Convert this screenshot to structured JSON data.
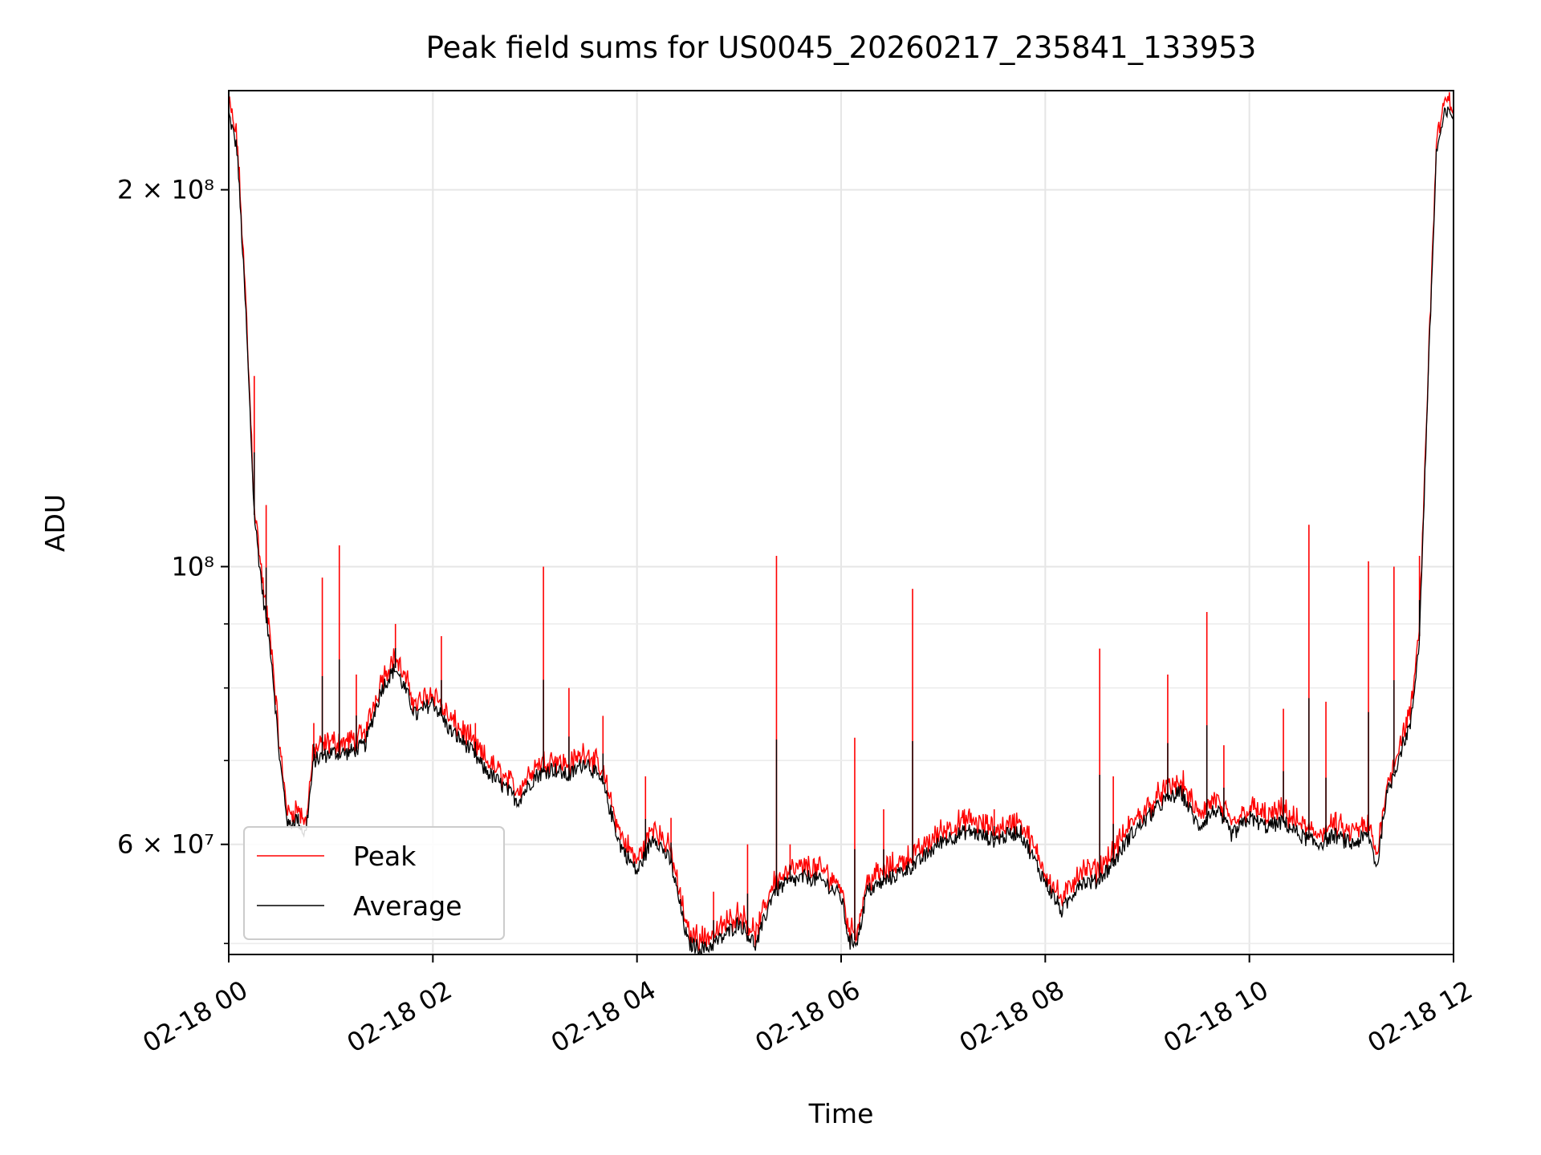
{
  "chart_data": {
    "type": "line",
    "title": "Peak field sums for US0045_20260217_235841_133953",
    "xlabel": "Time",
    "ylabel": "ADU",
    "yscale": "log",
    "ylim": [
      49000000,
      240000000
    ],
    "xlim": [
      "02-18 00:00",
      "02-18 12:00"
    ],
    "x_ticks": [
      "02-18 00",
      "02-18 02",
      "02-18 04",
      "02-18 06",
      "02-18 08",
      "02-18 10",
      "02-18 12"
    ],
    "y_tick_labels": [
      "6 × 10⁷",
      "10⁸",
      "2 × 10⁸"
    ],
    "grid": true,
    "legend": {
      "placement": "lower-left",
      "entries": [
        "Peak",
        "Average"
      ]
    },
    "colors": {
      "Peak": "#ff0000",
      "Average": "#000000"
    },
    "series": [
      {
        "name": "Average",
        "color": "#000000",
        "points": [
          [
            "02-18 00:00",
            230000000
          ],
          [
            "02-18 00:05",
            215000000
          ],
          [
            "02-18 00:10",
            160000000
          ],
          [
            "02-18 00:15",
            110000000
          ],
          [
            "02-18 00:20",
            95000000
          ],
          [
            "02-18 00:25",
            85000000
          ],
          [
            "02-18 00:30",
            70000000
          ],
          [
            "02-18 00:35",
            62000000
          ],
          [
            "02-18 00:40",
            63000000
          ],
          [
            "02-18 00:45",
            61000000
          ],
          [
            "02-18 00:50",
            70000000
          ],
          [
            "02-18 01:00",
            71000000
          ],
          [
            "02-18 01:10",
            71000000
          ],
          [
            "02-18 01:20",
            72000000
          ],
          [
            "02-18 01:30",
            80000000
          ],
          [
            "02-18 01:38",
            83000000
          ],
          [
            "02-18 01:45",
            79000000
          ],
          [
            "02-18 01:50",
            76000000
          ],
          [
            "02-18 02:00",
            78000000
          ],
          [
            "02-18 02:10",
            74000000
          ],
          [
            "02-18 02:20",
            72000000
          ],
          [
            "02-18 02:30",
            69000000
          ],
          [
            "02-18 02:40",
            67000000
          ],
          [
            "02-18 02:50",
            65000000
          ],
          [
            "02-18 03:00",
            68000000
          ],
          [
            "02-18 03:10",
            69000000
          ],
          [
            "02-18 03:20",
            68000000
          ],
          [
            "02-18 03:30",
            70000000
          ],
          [
            "02-18 03:40",
            67000000
          ],
          [
            "02-18 03:50",
            60000000
          ],
          [
            "02-18 04:00",
            57000000
          ],
          [
            "02-18 04:10",
            61000000
          ],
          [
            "02-18 04:20",
            58000000
          ],
          [
            "02-18 04:30",
            50000000
          ],
          [
            "02-18 04:40",
            49500000
          ],
          [
            "02-18 04:50",
            50500000
          ],
          [
            "02-18 05:00",
            52000000
          ],
          [
            "02-18 05:10",
            49800000
          ],
          [
            "02-18 05:20",
            55000000
          ],
          [
            "02-18 05:30",
            56000000
          ],
          [
            "02-18 05:40",
            56500000
          ],
          [
            "02-18 05:50",
            56000000
          ],
          [
            "02-18 06:00",
            54500000
          ],
          [
            "02-18 06:05",
            50000000
          ],
          [
            "02-18 06:10",
            50500000
          ],
          [
            "02-18 06:15",
            55000000
          ],
          [
            "02-18 06:30",
            56500000
          ],
          [
            "02-18 06:45",
            58000000
          ],
          [
            "02-18 07:00",
            60500000
          ],
          [
            "02-18 07:15",
            61500000
          ],
          [
            "02-18 07:30",
            60500000
          ],
          [
            "02-18 07:45",
            61500000
          ],
          [
            "02-18 08:00",
            56000000
          ],
          [
            "02-18 08:10",
            53000000
          ],
          [
            "02-18 08:20",
            56000000
          ],
          [
            "02-18 08:30",
            56000000
          ],
          [
            "02-18 08:40",
            58000000
          ],
          [
            "02-18 08:50",
            61000000
          ],
          [
            "02-18 09:00",
            63000000
          ],
          [
            "02-18 09:10",
            65000000
          ],
          [
            "02-18 09:20",
            66000000
          ],
          [
            "02-18 09:30",
            62000000
          ],
          [
            "02-18 09:40",
            64000000
          ],
          [
            "02-18 09:50",
            61000000
          ],
          [
            "02-18 10:00",
            63000000
          ],
          [
            "02-18 10:10",
            62000000
          ],
          [
            "02-18 10:20",
            62500000
          ],
          [
            "02-18 10:30",
            61000000
          ],
          [
            "02-18 10:40",
            60000000
          ],
          [
            "02-18 10:50",
            61000000
          ],
          [
            "02-18 11:00",
            60000000
          ],
          [
            "02-18 11:10",
            61000000
          ],
          [
            "02-18 11:15",
            57500000
          ],
          [
            "02-18 11:20",
            65000000
          ],
          [
            "02-18 11:30",
            72000000
          ],
          [
            "02-18 11:35",
            75000000
          ],
          [
            "02-18 11:40",
            88000000
          ],
          [
            "02-18 11:45",
            140000000
          ],
          [
            "02-18 11:50",
            215000000
          ],
          [
            "02-18 11:55",
            230000000
          ]
        ]
      },
      {
        "name": "Peak",
        "color": "#ff0000",
        "spikes": [
          [
            "02-18 00:15",
            142000000
          ],
          [
            "02-18 00:22",
            112000000
          ],
          [
            "02-18 00:50",
            75000000
          ],
          [
            "02-18 00:55",
            98000000
          ],
          [
            "02-18 01:05",
            104000000
          ],
          [
            "02-18 01:15",
            82000000
          ],
          [
            "02-18 01:38",
            90000000
          ],
          [
            "02-18 02:05",
            88000000
          ],
          [
            "02-18 02:25",
            75000000
          ],
          [
            "02-18 03:05",
            100000000
          ],
          [
            "02-18 03:20",
            80000000
          ],
          [
            "02-18 03:40",
            76000000
          ],
          [
            "02-18 04:05",
            68000000
          ],
          [
            "02-18 04:20",
            63000000
          ],
          [
            "02-18 04:45",
            55000000
          ],
          [
            "02-18 05:05",
            60000000
          ],
          [
            "02-18 05:22",
            102000000
          ],
          [
            "02-18 05:30",
            60000000
          ],
          [
            "02-18 06:08",
            73000000
          ],
          [
            "02-18 06:25",
            64000000
          ],
          [
            "02-18 06:42",
            96000000
          ],
          [
            "02-18 07:30",
            64000000
          ],
          [
            "02-18 08:32",
            86000000
          ],
          [
            "02-18 08:40",
            68000000
          ],
          [
            "02-18 09:12",
            82000000
          ],
          [
            "02-18 09:35",
            92000000
          ],
          [
            "02-18 09:45",
            72000000
          ],
          [
            "02-18 10:20",
            77000000
          ],
          [
            "02-18 10:35",
            108000000
          ],
          [
            "02-18 10:45",
            78000000
          ],
          [
            "02-18 11:10",
            101000000
          ],
          [
            "02-18 11:25",
            100000000
          ],
          [
            "02-18 11:40",
            102000000
          ]
        ]
      }
    ]
  }
}
